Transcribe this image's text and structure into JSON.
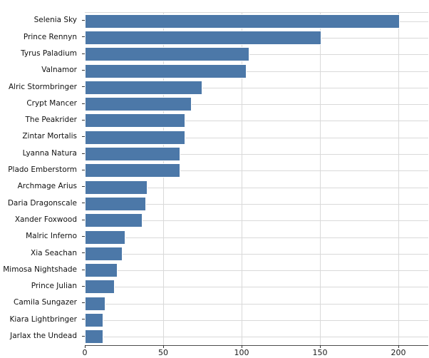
{
  "chart_data": {
    "type": "bar",
    "orientation": "horizontal",
    "title": "",
    "xlabel": "",
    "ylabel": "",
    "categories": [
      "Selenia Sky",
      "Prince Rennyn",
      "Tyrus Paladium",
      "Valnamor",
      "Alric Stormbringer",
      "Crypt Mancer",
      "The Peakrider",
      "Zintar Mortalis",
      "Lyanna Natura",
      "Plado Emberstorm",
      "Archmage Arius",
      "Daria Dragonscale",
      "Xander Foxwood",
      "Malric Inferno",
      "Xia Seachan",
      "Mimosa Nightshade",
      "Prince Julian",
      "Camila Sungazer",
      "Kiara Lightbringer",
      "Jarlax the Undead"
    ],
    "values": [
      201,
      151,
      105,
      103,
      75,
      68,
      64,
      64,
      61,
      61,
      40,
      39,
      37,
      26,
      24,
      21,
      19,
      13,
      12,
      12
    ],
    "x_ticks": [
      0,
      50,
      100,
      150,
      200
    ],
    "xlim": [
      0,
      219
    ],
    "grid": true,
    "legend": false,
    "bar_color": "#4c78a8",
    "bar_edge_color": "#ffffff",
    "grid_color": "#d9d9d9",
    "axis_line_color": "#4d4d4d",
    "tick_color": "#333333",
    "tick_label_color": "#1a1a1a"
  }
}
